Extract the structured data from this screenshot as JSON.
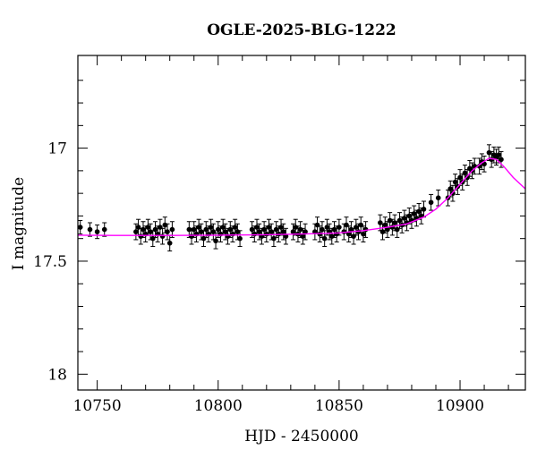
{
  "chart_data": {
    "type": "scatter",
    "title": "OGLE-2025-BLG-1222",
    "xlabel": "HJD - 2450000",
    "ylabel": "I magnitude",
    "xlim": [
      10742,
      10927
    ],
    "ylim": [
      18.07,
      16.59
    ],
    "y_inverted": true,
    "x_ticks": [
      10750,
      10800,
      10850,
      10900
    ],
    "x_tick_labels": [
      "10750",
      "10800",
      "10850",
      "10900"
    ],
    "y_ticks": [
      17,
      17.5,
      18
    ],
    "y_tick_labels": [
      "17",
      "17.5",
      "18"
    ],
    "grid": false,
    "colors": {
      "points": "#000000",
      "model": "#ff00ff",
      "axes": "#000000"
    },
    "series": [
      {
        "kind": "observations",
        "points": [
          {
            "x": 10743,
            "y": 17.35,
            "err": 0.03
          },
          {
            "x": 10747,
            "y": 17.36,
            "err": 0.03
          },
          {
            "x": 10750,
            "y": 17.37,
            "err": 0.03
          },
          {
            "x": 10753,
            "y": 17.36,
            "err": 0.03
          },
          {
            "x": 10766,
            "y": 17.37,
            "err": 0.035
          },
          {
            "x": 10767,
            "y": 17.35,
            "err": 0.035
          },
          {
            "x": 10768,
            "y": 17.39,
            "err": 0.035
          },
          {
            "x": 10769,
            "y": 17.36,
            "err": 0.035
          },
          {
            "x": 10770,
            "y": 17.38,
            "err": 0.035
          },
          {
            "x": 10771,
            "y": 17.35,
            "err": 0.035
          },
          {
            "x": 10772,
            "y": 17.37,
            "err": 0.035
          },
          {
            "x": 10773,
            "y": 17.4,
            "err": 0.035
          },
          {
            "x": 10774,
            "y": 17.36,
            "err": 0.035
          },
          {
            "x": 10775,
            "y": 17.38,
            "err": 0.035
          },
          {
            "x": 10776,
            "y": 17.35,
            "err": 0.035
          },
          {
            "x": 10777,
            "y": 17.39,
            "err": 0.035
          },
          {
            "x": 10778,
            "y": 17.34,
            "err": 0.035
          },
          {
            "x": 10779,
            "y": 17.37,
            "err": 0.035
          },
          {
            "x": 10780,
            "y": 17.42,
            "err": 0.035
          },
          {
            "x": 10781,
            "y": 17.36,
            "err": 0.035
          },
          {
            "x": 10788,
            "y": 17.36,
            "err": 0.035
          },
          {
            "x": 10789,
            "y": 17.39,
            "err": 0.035
          },
          {
            "x": 10790,
            "y": 17.36,
            "err": 0.035
          },
          {
            "x": 10791,
            "y": 17.38,
            "err": 0.035
          },
          {
            "x": 10792,
            "y": 17.35,
            "err": 0.035
          },
          {
            "x": 10793,
            "y": 17.37,
            "err": 0.035
          },
          {
            "x": 10794,
            "y": 17.4,
            "err": 0.035
          },
          {
            "x": 10795,
            "y": 17.36,
            "err": 0.035
          },
          {
            "x": 10796,
            "y": 17.38,
            "err": 0.035
          },
          {
            "x": 10797,
            "y": 17.35,
            "err": 0.035
          },
          {
            "x": 10798,
            "y": 17.37,
            "err": 0.035
          },
          {
            "x": 10799,
            "y": 17.41,
            "err": 0.035
          },
          {
            "x": 10800,
            "y": 17.36,
            "err": 0.035
          },
          {
            "x": 10801,
            "y": 17.38,
            "err": 0.035
          },
          {
            "x": 10802,
            "y": 17.35,
            "err": 0.035
          },
          {
            "x": 10803,
            "y": 17.37,
            "err": 0.035
          },
          {
            "x": 10804,
            "y": 17.39,
            "err": 0.035
          },
          {
            "x": 10805,
            "y": 17.36,
            "err": 0.035
          },
          {
            "x": 10806,
            "y": 17.38,
            "err": 0.035
          },
          {
            "x": 10807,
            "y": 17.35,
            "err": 0.035
          },
          {
            "x": 10808,
            "y": 17.37,
            "err": 0.035
          },
          {
            "x": 10809,
            "y": 17.4,
            "err": 0.035
          },
          {
            "x": 10814,
            "y": 17.36,
            "err": 0.035
          },
          {
            "x": 10815,
            "y": 17.38,
            "err": 0.035
          },
          {
            "x": 10816,
            "y": 17.35,
            "err": 0.035
          },
          {
            "x": 10817,
            "y": 17.37,
            "err": 0.035
          },
          {
            "x": 10818,
            "y": 17.39,
            "err": 0.035
          },
          {
            "x": 10819,
            "y": 17.36,
            "err": 0.035
          },
          {
            "x": 10820,
            "y": 17.38,
            "err": 0.035
          },
          {
            "x": 10821,
            "y": 17.35,
            "err": 0.035
          },
          {
            "x": 10822,
            "y": 17.37,
            "err": 0.035
          },
          {
            "x": 10823,
            "y": 17.4,
            "err": 0.035
          },
          {
            "x": 10824,
            "y": 17.36,
            "err": 0.035
          },
          {
            "x": 10825,
            "y": 17.38,
            "err": 0.035
          },
          {
            "x": 10826,
            "y": 17.35,
            "err": 0.035
          },
          {
            "x": 10827,
            "y": 17.37,
            "err": 0.035
          },
          {
            "x": 10828,
            "y": 17.39,
            "err": 0.035
          },
          {
            "x": 10831,
            "y": 17.37,
            "err": 0.035
          },
          {
            "x": 10832,
            "y": 17.35,
            "err": 0.035
          },
          {
            "x": 10833,
            "y": 17.38,
            "err": 0.035
          },
          {
            "x": 10834,
            "y": 17.36,
            "err": 0.035
          },
          {
            "x": 10835,
            "y": 17.39,
            "err": 0.035
          },
          {
            "x": 10836,
            "y": 17.37,
            "err": 0.035
          },
          {
            "x": 10840,
            "y": 17.37,
            "err": 0.035
          },
          {
            "x": 10841,
            "y": 17.34,
            "err": 0.035
          },
          {
            "x": 10842,
            "y": 17.38,
            "err": 0.035
          },
          {
            "x": 10843,
            "y": 17.36,
            "err": 0.035
          },
          {
            "x": 10844,
            "y": 17.4,
            "err": 0.035
          },
          {
            "x": 10845,
            "y": 17.35,
            "err": 0.035
          },
          {
            "x": 10846,
            "y": 17.37,
            "err": 0.035
          },
          {
            "x": 10847,
            "y": 17.39,
            "err": 0.035
          },
          {
            "x": 10848,
            "y": 17.36,
            "err": 0.035
          },
          {
            "x": 10849,
            "y": 17.38,
            "err": 0.035
          },
          {
            "x": 10850,
            "y": 17.35,
            "err": 0.035
          },
          {
            "x": 10852,
            "y": 17.37,
            "err": 0.035
          },
          {
            "x": 10853,
            "y": 17.34,
            "err": 0.035
          },
          {
            "x": 10854,
            "y": 17.38,
            "err": 0.035
          },
          {
            "x": 10855,
            "y": 17.36,
            "err": 0.035
          },
          {
            "x": 10856,
            "y": 17.39,
            "err": 0.035
          },
          {
            "x": 10857,
            "y": 17.35,
            "err": 0.035
          },
          {
            "x": 10858,
            "y": 17.37,
            "err": 0.035
          },
          {
            "x": 10859,
            "y": 17.34,
            "err": 0.035
          },
          {
            "x": 10860,
            "y": 17.38,
            "err": 0.035
          },
          {
            "x": 10861,
            "y": 17.36,
            "err": 0.035
          },
          {
            "x": 10867,
            "y": 17.33,
            "err": 0.035
          },
          {
            "x": 10868,
            "y": 17.37,
            "err": 0.035
          },
          {
            "x": 10869,
            "y": 17.34,
            "err": 0.035
          },
          {
            "x": 10870,
            "y": 17.36,
            "err": 0.035
          },
          {
            "x": 10871,
            "y": 17.32,
            "err": 0.035
          },
          {
            "x": 10872,
            "y": 17.35,
            "err": 0.035
          },
          {
            "x": 10873,
            "y": 17.33,
            "err": 0.035
          },
          {
            "x": 10874,
            "y": 17.36,
            "err": 0.035
          },
          {
            "x": 10875,
            "y": 17.32,
            "err": 0.035
          },
          {
            "x": 10876,
            "y": 17.34,
            "err": 0.035
          },
          {
            "x": 10877,
            "y": 17.31,
            "err": 0.035
          },
          {
            "x": 10878,
            "y": 17.33,
            "err": 0.035
          },
          {
            "x": 10879,
            "y": 17.3,
            "err": 0.035
          },
          {
            "x": 10880,
            "y": 17.32,
            "err": 0.035
          },
          {
            "x": 10881,
            "y": 17.29,
            "err": 0.035
          },
          {
            "x": 10882,
            "y": 17.31,
            "err": 0.035
          },
          {
            "x": 10883,
            "y": 17.28,
            "err": 0.035
          },
          {
            "x": 10884,
            "y": 17.3,
            "err": 0.035
          },
          {
            "x": 10885,
            "y": 17.27,
            "err": 0.035
          },
          {
            "x": 10888,
            "y": 17.24,
            "err": 0.035
          },
          {
            "x": 10891,
            "y": 17.22,
            "err": 0.035
          },
          {
            "x": 10895,
            "y": 17.22,
            "err": 0.035
          },
          {
            "x": 10896,
            "y": 17.18,
            "err": 0.035
          },
          {
            "x": 10897,
            "y": 17.2,
            "err": 0.035
          },
          {
            "x": 10898,
            "y": 17.15,
            "err": 0.035
          },
          {
            "x": 10899,
            "y": 17.17,
            "err": 0.035
          },
          {
            "x": 10900,
            "y": 17.13,
            "err": 0.035
          },
          {
            "x": 10901,
            "y": 17.15,
            "err": 0.035
          },
          {
            "x": 10902,
            "y": 17.11,
            "err": 0.035
          },
          {
            "x": 10903,
            "y": 17.13,
            "err": 0.035
          },
          {
            "x": 10904,
            "y": 17.09,
            "err": 0.035
          },
          {
            "x": 10905,
            "y": 17.1,
            "err": 0.035
          },
          {
            "x": 10906,
            "y": 17.08,
            "err": 0.035
          },
          {
            "x": 10908,
            "y": 17.08,
            "err": 0.035
          },
          {
            "x": 10909,
            "y": 17.06,
            "err": 0.035
          },
          {
            "x": 10910,
            "y": 17.07,
            "err": 0.035
          },
          {
            "x": 10912,
            "y": 17.02,
            "err": 0.035
          },
          {
            "x": 10913,
            "y": 17.05,
            "err": 0.035
          },
          {
            "x": 10914,
            "y": 17.03,
            "err": 0.035
          },
          {
            "x": 10915,
            "y": 17.04,
            "err": 0.035
          },
          {
            "x": 10916,
            "y": 17.03,
            "err": 0.035
          },
          {
            "x": 10917,
            "y": 17.05,
            "err": 0.035
          }
        ]
      },
      {
        "kind": "model",
        "points": [
          {
            "x": 10742,
            "y": 17.385
          },
          {
            "x": 10760,
            "y": 17.386
          },
          {
            "x": 10780,
            "y": 17.386
          },
          {
            "x": 10800,
            "y": 17.385
          },
          {
            "x": 10820,
            "y": 17.383
          },
          {
            "x": 10835,
            "y": 17.38
          },
          {
            "x": 10850,
            "y": 17.375
          },
          {
            "x": 10860,
            "y": 17.365
          },
          {
            "x": 10870,
            "y": 17.35
          },
          {
            "x": 10878,
            "y": 17.335
          },
          {
            "x": 10885,
            "y": 17.305
          },
          {
            "x": 10890,
            "y": 17.27
          },
          {
            "x": 10895,
            "y": 17.22
          },
          {
            "x": 10900,
            "y": 17.16
          },
          {
            "x": 10905,
            "y": 17.1
          },
          {
            "x": 10909,
            "y": 17.065
          },
          {
            "x": 10912,
            "y": 17.045
          },
          {
            "x": 10915,
            "y": 17.05
          },
          {
            "x": 10918,
            "y": 17.08
          },
          {
            "x": 10922,
            "y": 17.13
          },
          {
            "x": 10927,
            "y": 17.18
          }
        ]
      }
    ]
  }
}
